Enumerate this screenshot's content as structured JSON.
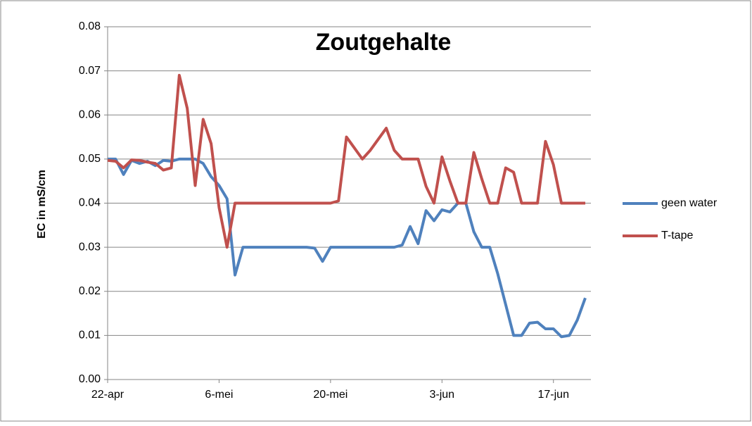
{
  "chart_data": {
    "type": "line",
    "title": "Zoutgehalte",
    "y_label": "EC in mS/cm",
    "categories": [
      "22-apr",
      null,
      null,
      null,
      null,
      null,
      null,
      null,
      null,
      null,
      null,
      null,
      null,
      null,
      "6-mei",
      null,
      null,
      null,
      null,
      null,
      null,
      null,
      null,
      null,
      null,
      null,
      null,
      null,
      "20-mei",
      null,
      null,
      null,
      null,
      null,
      null,
      null,
      null,
      null,
      null,
      null,
      null,
      null,
      "3-jun",
      null,
      null,
      null,
      null,
      null,
      null,
      null,
      null,
      null,
      null,
      null,
      null,
      null,
      "17-jun",
      null,
      null,
      null,
      null
    ],
    "series": [
      {
        "name": "geen water",
        "color": "#4f81bd",
        "values": [
          0.05,
          0.05,
          0.0465,
          0.0497,
          0.049,
          0.0495,
          0.0485,
          0.0497,
          0.0495,
          0.05,
          0.05,
          0.05,
          0.049,
          0.046,
          0.044,
          0.041,
          0.0237,
          0.03,
          0.03,
          0.03,
          0.03,
          0.03,
          0.03,
          0.03,
          0.03,
          0.03,
          0.0298,
          0.0268,
          0.03,
          0.03,
          0.03,
          0.03,
          0.03,
          0.03,
          0.03,
          0.03,
          0.03,
          0.0305,
          0.0347,
          0.0308,
          0.0383,
          0.036,
          0.0385,
          0.038,
          0.04,
          0.04,
          0.0335,
          0.03,
          0.03,
          0.024,
          0.017,
          0.01,
          0.01,
          0.0128,
          0.013,
          0.0115,
          0.0115,
          0.0097,
          0.01,
          0.0135,
          0.0185
        ]
      },
      {
        "name": "T-tape",
        "color": "#c0504d",
        "values": [
          0.0497,
          0.0495,
          0.048,
          0.0498,
          0.0497,
          0.0493,
          0.049,
          0.0475,
          0.048,
          0.069,
          0.0615,
          0.044,
          0.059,
          0.0535,
          0.039,
          0.03,
          0.04,
          0.04,
          0.04,
          0.04,
          0.04,
          0.04,
          0.04,
          0.04,
          0.04,
          0.04,
          0.04,
          0.04,
          0.04,
          0.0405,
          0.055,
          0.0525,
          0.05,
          0.052,
          0.0545,
          0.057,
          0.052,
          0.05,
          0.05,
          0.05,
          0.0438,
          0.04,
          0.0505,
          0.045,
          0.04,
          0.04,
          0.0515,
          0.0455,
          0.04,
          0.04,
          0.048,
          0.047,
          0.04,
          0.04,
          0.04,
          0.054,
          0.0487,
          0.04,
          0.04,
          0.04,
          0.04
        ]
      }
    ],
    "ylim": [
      0,
      0.08
    ],
    "yticks": [
      {
        "value": 0,
        "label": "0.00"
      },
      0.01,
      0.02,
      0.03,
      0.04,
      0.05,
      0.06,
      0.07,
      0.08
    ],
    "grid": true,
    "legend": "right"
  }
}
